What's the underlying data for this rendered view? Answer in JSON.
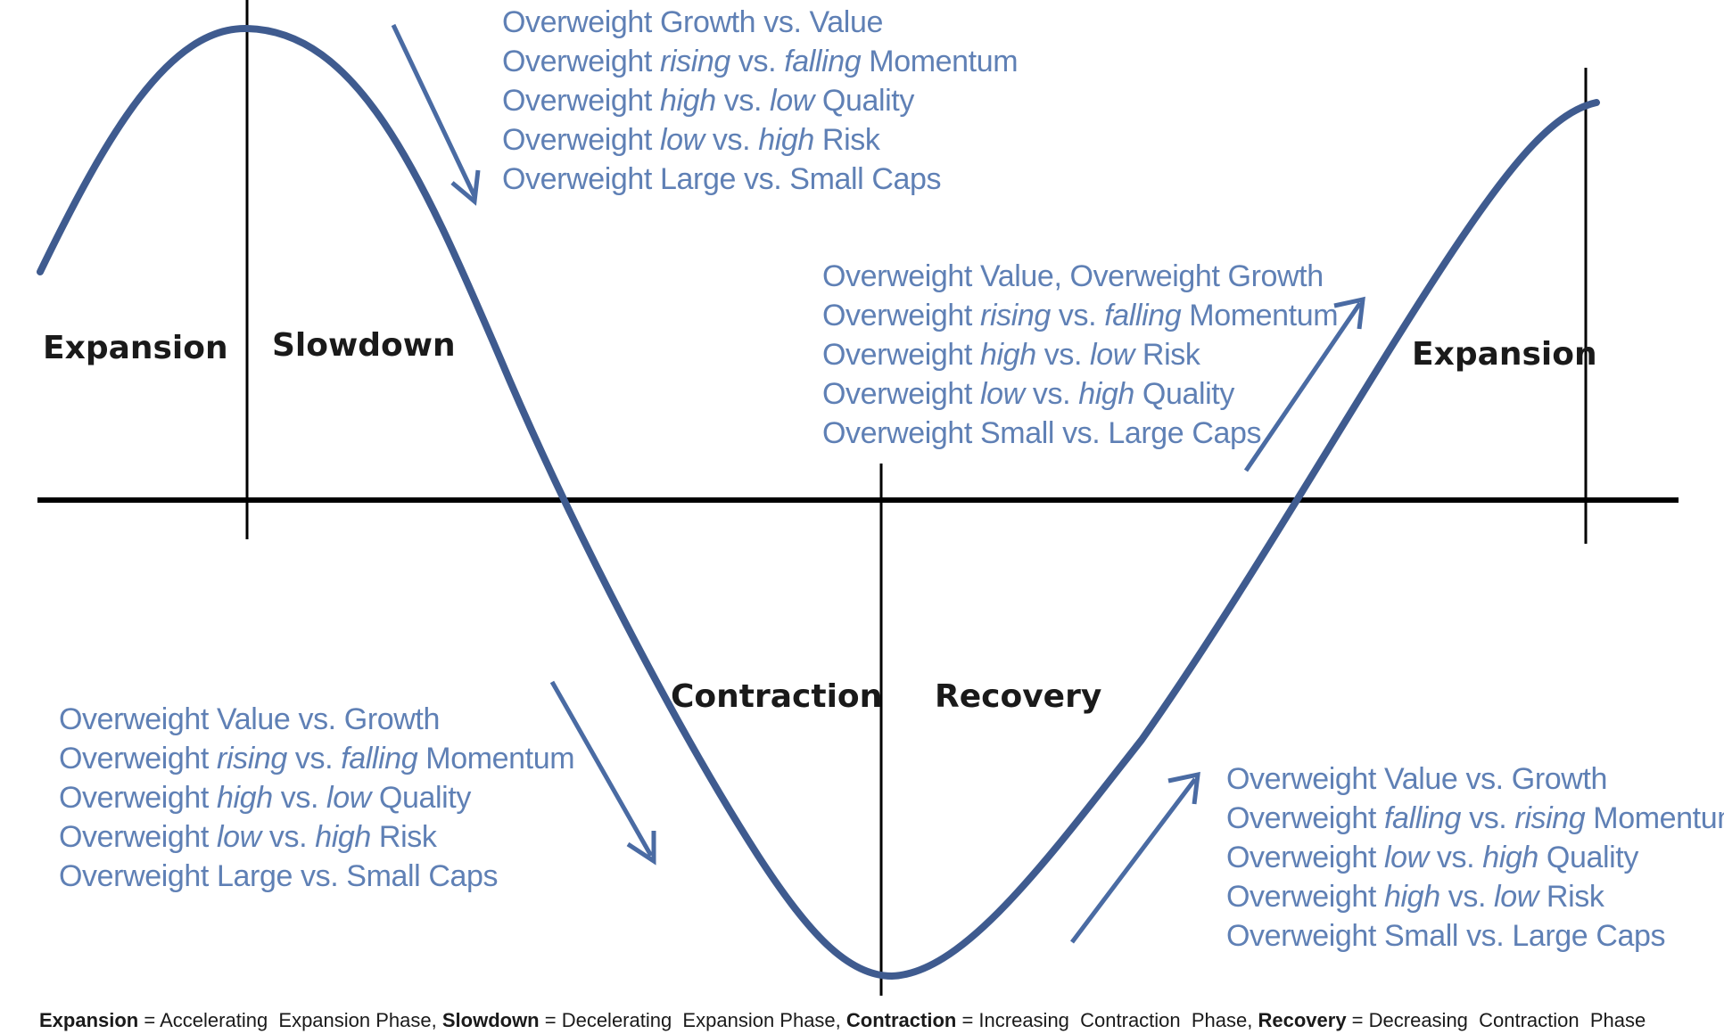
{
  "colors": {
    "curve": "#3f5b8f",
    "axis": "#000000",
    "strategy_text": "#5f80b5",
    "arrow": "#4a6ba3",
    "phase_label": "#1a1a1a",
    "background": "#ffffff"
  },
  "phases": {
    "expansion_left": "Expansion",
    "slowdown": "Slowdown",
    "contraction": "Contraction",
    "recovery": "Recovery",
    "expansion_right": "Expansion"
  },
  "strategies": {
    "slowdown": [
      [
        {
          "t": "Overweight Growth vs. Value"
        }
      ],
      [
        {
          "t": "Overweight "
        },
        {
          "t": "rising",
          "i": true
        },
        {
          "t": " vs. "
        },
        {
          "t": "falling",
          "i": true
        },
        {
          "t": " Momentum"
        }
      ],
      [
        {
          "t": "Overweight "
        },
        {
          "t": "high",
          "i": true
        },
        {
          "t": " vs. "
        },
        {
          "t": "low",
          "i": true
        },
        {
          "t": " Quality"
        }
      ],
      [
        {
          "t": "Overweight "
        },
        {
          "t": "low",
          "i": true
        },
        {
          "t": "  vs. "
        },
        {
          "t": "high",
          "i": true
        },
        {
          "t": " Risk"
        }
      ],
      [
        {
          "t": "Overweight Large vs. Small Caps"
        }
      ]
    ],
    "expansion": [
      [
        {
          "t": "Overweight Value, Overweight Growth"
        }
      ],
      [
        {
          "t": "Overweight "
        },
        {
          "t": "rising",
          "i": true
        },
        {
          "t": " vs. "
        },
        {
          "t": "falling",
          "i": true
        },
        {
          "t": " Momentum"
        }
      ],
      [
        {
          "t": "Overweight "
        },
        {
          "t": "high",
          "i": true
        },
        {
          "t": " vs. "
        },
        {
          "t": "low",
          "i": true
        },
        {
          "t": " Risk"
        }
      ],
      [
        {
          "t": "Overweight "
        },
        {
          "t": "low",
          "i": true
        },
        {
          "t": " vs. "
        },
        {
          "t": "high",
          "i": true
        },
        {
          "t": " Quality"
        }
      ],
      [
        {
          "t": "Overweight Small vs. Large Caps"
        }
      ]
    ],
    "contraction": [
      [
        {
          "t": "Overweight Value vs. Growth"
        }
      ],
      [
        {
          "t": "Overweight "
        },
        {
          "t": "rising",
          "i": true
        },
        {
          "t": " vs. "
        },
        {
          "t": "falling",
          "i": true
        },
        {
          "t": " Momentum"
        }
      ],
      [
        {
          "t": "Overweight "
        },
        {
          "t": "high",
          "i": true
        },
        {
          "t": " vs. "
        },
        {
          "t": "low",
          "i": true
        },
        {
          "t": " Quality"
        }
      ],
      [
        {
          "t": "Overweight "
        },
        {
          "t": "low",
          "i": true
        },
        {
          "t": " vs. "
        },
        {
          "t": "high",
          "i": true
        },
        {
          "t": " Risk"
        }
      ],
      [
        {
          "t": "Overweight Large vs. Small Caps"
        }
      ]
    ],
    "recovery": [
      [
        {
          "t": "Overweight Value vs. Growth"
        }
      ],
      [
        {
          "t": "Overweight "
        },
        {
          "t": "falling",
          "i": true
        },
        {
          "t": " vs. "
        },
        {
          "t": "rising",
          "i": true
        },
        {
          "t": " Momentum"
        }
      ],
      [
        {
          "t": "Overweight "
        },
        {
          "t": "low",
          "i": true
        },
        {
          "t": " vs. "
        },
        {
          "t": "high",
          "i": true
        },
        {
          "t": " Quality"
        }
      ],
      [
        {
          "t": "Overweight "
        },
        {
          "t": "high",
          "i": true
        },
        {
          "t": " vs. "
        },
        {
          "t": "low",
          "i": true
        },
        {
          "t": " Risk"
        }
      ],
      [
        {
          "t": "Overweight Small vs. Large Caps"
        }
      ]
    ]
  },
  "legend": {
    "expansion_term": "Expansion",
    "expansion_def": " = Accelerating  Expansion Phase, ",
    "slowdown_term": "Slowdown",
    "slowdown_def": " = Decelerating  Expansion Phase, ",
    "contraction_term": "Contraction",
    "contraction_def": " = Increasing  Contraction  Phase, ",
    "recovery_term": "Recovery",
    "recovery_def": " = Decreasing  Contraction  Phase"
  }
}
